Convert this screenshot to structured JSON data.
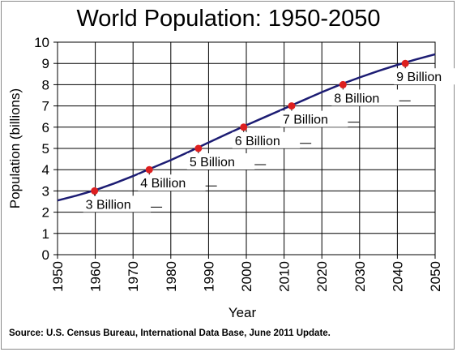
{
  "chart_data": {
    "type": "line",
    "title": "World Population: 1950-2050",
    "xlabel": "Year",
    "ylabel": "Population (billions)",
    "xlim": [
      1950,
      2050
    ],
    "ylim": [
      0,
      10
    ],
    "xticks": [
      1950,
      1960,
      1970,
      1980,
      1990,
      2000,
      2010,
      2020,
      2030,
      2040,
      2050
    ],
    "yticks": [
      0,
      1,
      2,
      3,
      4,
      5,
      6,
      7,
      8,
      9,
      10
    ],
    "grid": true,
    "series": [
      {
        "x": [
          1950,
          1955,
          1960,
          1965,
          1970,
          1975,
          1980,
          1985,
          1990,
          1995,
          2000,
          2005,
          2010,
          2015,
          2020,
          2025,
          2030,
          2035,
          2040,
          2045,
          2050
        ],
        "y": [
          2.55,
          2.78,
          3.04,
          3.35,
          3.7,
          4.08,
          4.45,
          4.86,
          5.28,
          5.69,
          6.09,
          6.48,
          6.87,
          7.26,
          7.65,
          8.01,
          8.34,
          8.65,
          8.93,
          9.19,
          9.43
        ]
      }
    ],
    "milestones": [
      {
        "x": 1959.8,
        "y": 3,
        "label": "3 Billion"
      },
      {
        "x": 1974.3,
        "y": 4,
        "label": "4 Billion"
      },
      {
        "x": 1987.3,
        "y": 5,
        "label": "5 Billion"
      },
      {
        "x": 1999.3,
        "y": 6,
        "label": "6 Billion"
      },
      {
        "x": 2012.0,
        "y": 7,
        "label": "7 Billion"
      },
      {
        "x": 2025.6,
        "y": 8,
        "label": "8 Billion"
      },
      {
        "x": 2042.1,
        "y": 9,
        "label": "9 Billion"
      }
    ],
    "colors": {
      "line": "#1c1c73",
      "marker": "#dd1f1f",
      "grid": "#000000"
    }
  },
  "source": "Source: U.S. Census Bureau, International Data Base, June 2011 Update."
}
